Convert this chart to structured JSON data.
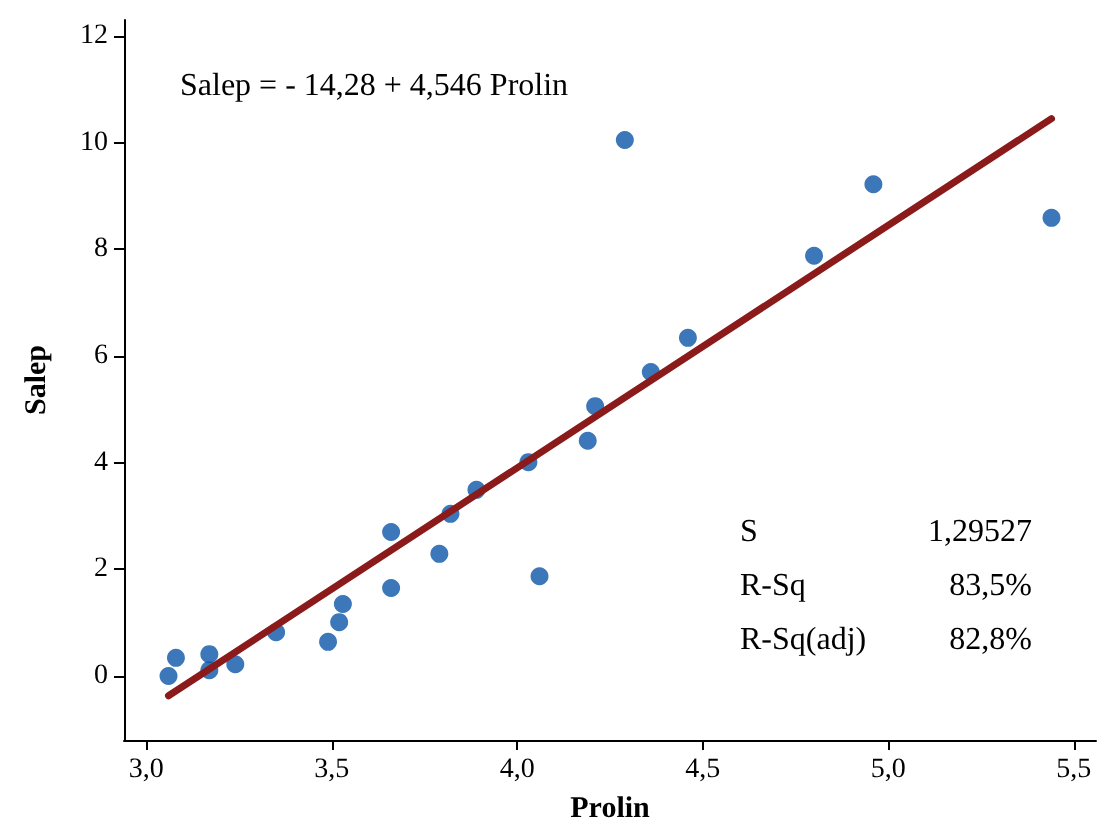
{
  "chart_data": {
    "type": "scatter",
    "xlabel": "Prolin",
    "ylabel": "Salep",
    "annotations": [
      "Salep = - 14,28 + 4,546 Prolin",
      "S",
      "1,29527",
      "R-Sq",
      "83,5%",
      "R-Sq(adj)",
      "82,8%"
    ],
    "xlim": [
      2.94,
      5.56
    ],
    "ylim": [
      -1.2,
      12.3
    ],
    "xticks": [
      {
        "value": 3,
        "label": "3,0"
      },
      {
        "value": 3.5,
        "label": "3,5"
      },
      {
        "value": 4,
        "label": "4,0"
      },
      {
        "value": 4.5,
        "label": "4,5"
      },
      {
        "value": 5,
        "label": "5,0"
      },
      {
        "value": 5.5,
        "label": "5,5"
      }
    ],
    "yticks": [
      0,
      2,
      4,
      6,
      8,
      10,
      12
    ],
    "grid": false,
    "marker": "circle",
    "series": [
      {
        "color": "#0a55a8",
        "x": [
          3.06,
          3.08,
          3.17,
          3.17,
          3.24,
          3.35,
          3.49,
          3.52,
          3.53,
          3.66,
          3.66,
          3.79,
          3.82,
          3.89,
          4.03,
          4.06,
          4.19,
          4.21,
          4.29,
          4.36,
          4.46,
          4.8,
          4.96,
          5.44
        ],
        "values": [
          0.0,
          0.34,
          0.41,
          0.11,
          0.22,
          0.82,
          0.64,
          1.01,
          1.35,
          2.7,
          1.65,
          2.29,
          3.04,
          3.49,
          4.01,
          1.87,
          4.41,
          5.06,
          10.05,
          5.7,
          6.34,
          7.88,
          9.22,
          8.59
        ]
      },
      {
        "type": "line",
        "color": "#8b1a1a",
        "line_style": "solid",
        "marker": "none",
        "x": [
          3.06,
          5.44
        ],
        "values": [
          -0.37,
          10.45
        ]
      }
    ]
  }
}
